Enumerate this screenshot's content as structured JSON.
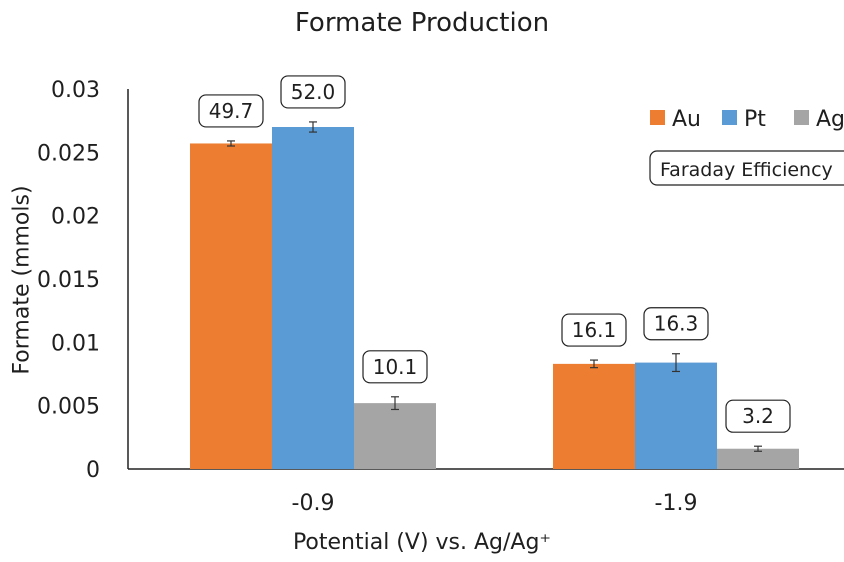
{
  "chart_data": {
    "type": "bar",
    "title": "Formate Production",
    "xlabel": "Potential (V) vs. Ag/Ag⁺",
    "ylabel": "Formate (mmols)",
    "categories": [
      "-0.9",
      "-1.9"
    ],
    "ylim": [
      0,
      0.03
    ],
    "yticks": [
      "0",
      "0.005",
      "0.01",
      "0.015",
      "0.02",
      "0.025",
      "0.03"
    ],
    "grid": false,
    "legend_position": "top-right",
    "series": [
      {
        "name": "Au",
        "color": "#ED7D31",
        "values": [
          0.0257,
          0.0083
        ],
        "errors": [
          0.0002,
          0.0003
        ],
        "labels": [
          "49.7",
          "16.1"
        ]
      },
      {
        "name": "Pt",
        "color": "#5B9BD5",
        "values": [
          0.027,
          0.0084
        ],
        "errors": [
          0.0004,
          0.0007
        ],
        "labels": [
          "52.0",
          "16.3"
        ]
      },
      {
        "name": "Ag",
        "color": "#A5A5A5",
        "values": [
          0.0052,
          0.0016
        ],
        "errors": [
          0.0005,
          0.0002
        ],
        "labels": [
          "10.1",
          "3.2"
        ]
      }
    ],
    "annotation_box": "Faraday Efficiency"
  }
}
